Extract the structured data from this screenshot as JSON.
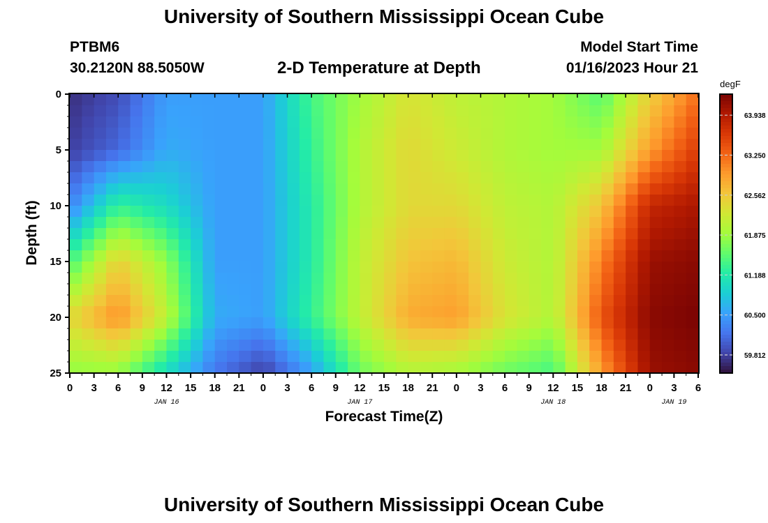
{
  "header": {
    "title": "University of Southern Mississippi Ocean Cube",
    "station": "PTBM6",
    "coords": "30.2120N  88.5050W",
    "subtitle": "2-D Temperature at Depth",
    "model_start_label": "Model Start Time",
    "model_start_value": "01/16/2023 Hour 21",
    "footer_title": "University of Southern Mississippi Ocean Cube"
  },
  "chart_data": {
    "type": "heatmap",
    "title": "2-D Temperature at Depth",
    "xlabel": "Forecast Time(Z)",
    "ylabel": "Depth (ft)",
    "ylim": [
      0,
      25
    ],
    "y_inverted": true,
    "x_tick_labels": [
      "0",
      "3",
      "6",
      "9",
      "12",
      "15",
      "18",
      "21",
      "0",
      "3",
      "6",
      "9",
      "12",
      "15",
      "18",
      "21",
      "0",
      "3",
      "6",
      "9",
      "12",
      "15",
      "18",
      "21",
      "0",
      "3",
      "6"
    ],
    "day_labels": [
      {
        "label": "JAN 16",
        "at_tick": 4
      },
      {
        "label": "JAN 17",
        "at_tick": 12
      },
      {
        "label": "JAN 18",
        "at_tick": 20
      },
      {
        "label": "JAN 19",
        "at_tick": 25
      }
    ],
    "y_ticks": [
      0,
      5,
      10,
      15,
      20,
      25
    ],
    "colorbar": {
      "unit": "degF",
      "min": 59.5,
      "max": 64.3,
      "ticks": [
        "59.812",
        "60.500",
        "61.188",
        "61.875",
        "62.562",
        "63.250",
        "63.938"
      ],
      "colors": [
        "#30123b",
        "#4145ab",
        "#4675ed",
        "#39a2fc",
        "#1bcfd4",
        "#24eca6",
        "#61fc6c",
        "#a4fc3b",
        "#d1e834",
        "#f3c63a",
        "#fe9b2d",
        "#f36315",
        "#d93806",
        "#b11901",
        "#7a0403"
      ]
    },
    "grid": false,
    "time_hours": [
      0,
      6,
      12,
      18,
      24,
      30,
      36,
      42,
      48,
      54,
      60,
      66,
      72,
      78
    ],
    "depths_ft": [
      0,
      5,
      10,
      15,
      20,
      25
    ],
    "values_degF": [
      [
        59.7,
        59.9,
        60.5,
        60.5,
        60.5,
        61.4,
        61.9,
        62.3,
        62.1,
        62.0,
        61.9,
        61.5,
        62.5,
        63.2
      ],
      [
        59.8,
        60.1,
        60.6,
        60.5,
        60.5,
        61.3,
        62.0,
        62.4,
        62.2,
        62.0,
        61.9,
        61.9,
        62.9,
        63.6
      ],
      [
        60.3,
        61.3,
        61.0,
        60.5,
        60.5,
        61.2,
        62.0,
        62.4,
        62.4,
        62.1,
        62.0,
        62.6,
        63.8,
        64.0
      ],
      [
        61.4,
        62.5,
        61.8,
        60.5,
        60.5,
        61.2,
        62.1,
        62.6,
        62.7,
        62.2,
        62.0,
        63.1,
        64.1,
        64.2
      ],
      [
        62.4,
        63.0,
        62.1,
        60.6,
        60.5,
        61.3,
        62.1,
        62.8,
        62.9,
        62.3,
        62.0,
        63.4,
        64.2,
        64.3
      ],
      [
        61.8,
        61.8,
        61.0,
        60.2,
        59.8,
        60.5,
        61.6,
        62.0,
        61.9,
        61.6,
        61.4,
        62.9,
        64.1,
        64.2
      ]
    ]
  }
}
